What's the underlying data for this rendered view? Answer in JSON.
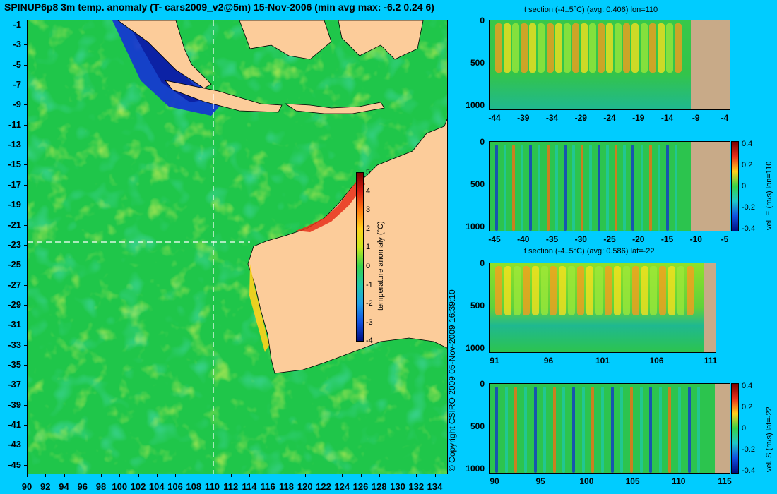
{
  "title": "SPINUP6p8 3m temp. anomaly (T- cars2009_v2@5m) 15-Nov-2006 (min avg max: -6.2 0.24 6)",
  "copyright": "© Copyright CSIRO 2009  05-Nov-2009 16:39:10",
  "map": {
    "lat_ticks": [
      "-1",
      "-3",
      "-5",
      "-7",
      "-9",
      "-11",
      "-13",
      "-15",
      "-17",
      "-19",
      "-21",
      "-23",
      "-25",
      "-27",
      "-29",
      "-31",
      "-33",
      "-35",
      "-37",
      "-39",
      "-41",
      "-43",
      "-45"
    ],
    "lon_ticks": [
      "90",
      "92",
      "94",
      "96",
      "98",
      "100",
      "102",
      "104",
      "106",
      "108",
      "110",
      "112",
      "114",
      "116",
      "118",
      "120",
      "122",
      "124",
      "126",
      "128",
      "130",
      "132",
      "134"
    ],
    "section_lon": 110,
    "section_lat": -22,
    "colorbar": {
      "label": "temperature anomaly (°C)",
      "ticks": [
        "5",
        "4",
        "3",
        "2",
        "1",
        "0",
        "-1",
        "-2",
        "-3",
        "-4"
      ],
      "range": [
        -4,
        5
      ]
    },
    "colors": {
      "ocean": "#22c244",
      "land": "#fccc9a",
      "background": "#00ccff"
    }
  },
  "panels": [
    {
      "title": "t section (-4..5°C) (avg: 0.406) lon=110",
      "y_ticks": [
        "0",
        "500",
        "1000"
      ],
      "x_ticks": [
        "-44",
        "-39",
        "-34",
        "-29",
        "-24",
        "-19",
        "-14",
        "-9",
        "-4"
      ],
      "colorbar_label": "",
      "colorbar_ticks": []
    },
    {
      "title": "",
      "y_ticks": [
        "0",
        "500",
        "1000"
      ],
      "x_ticks": [
        "-45",
        "-40",
        "-35",
        "-30",
        "-25",
        "-20",
        "-15",
        "-10",
        "-5"
      ],
      "colorbar_label": "vel. E (m/s) lon=110",
      "colorbar_ticks": [
        "0.4",
        "0.2",
        "0",
        "-0.2",
        "-0.4"
      ]
    },
    {
      "title": "t section (-4..5°C) (avg: 0.586) lat=-22",
      "y_ticks": [
        "0",
        "500",
        "1000"
      ],
      "x_ticks": [
        "91",
        "96",
        "101",
        "106",
        "111"
      ],
      "colorbar_label": "",
      "colorbar_ticks": []
    },
    {
      "title": "",
      "y_ticks": [
        "0",
        "500",
        "1000"
      ],
      "x_ticks": [
        "90",
        "95",
        "100",
        "105",
        "110",
        "115"
      ],
      "colorbar_label": "vel. S (m/s) lat=-22",
      "colorbar_ticks": [
        "0.4",
        "0.2",
        "0",
        "-0.2",
        "-0.4"
      ]
    }
  ]
}
